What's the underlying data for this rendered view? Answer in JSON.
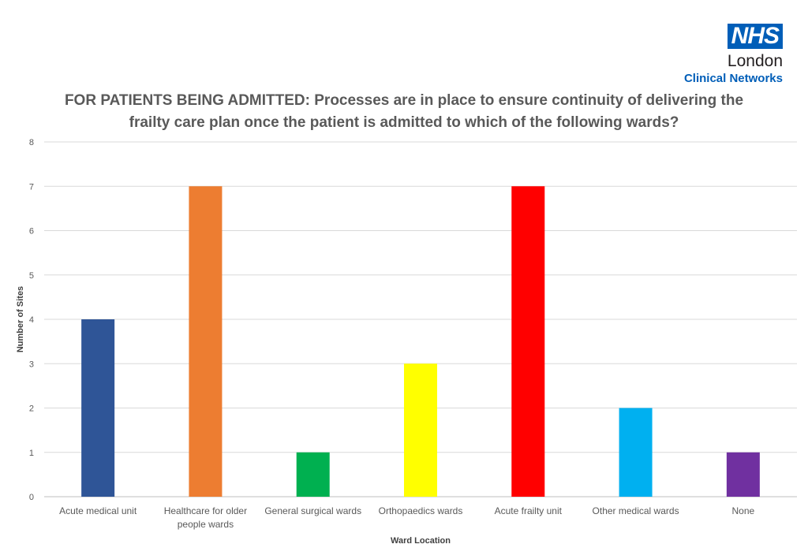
{
  "logo": {
    "mark": "NHS",
    "line1": "London",
    "line2": "Clinical Networks",
    "brand_color": "#005EB8"
  },
  "chart_data": {
    "type": "bar",
    "title": "FOR PATIENTS BEING ADMITTED: Processes are in place to ensure continuity of delivering the frailty care plan once the patient is admitted to which of the following wards?",
    "xlabel": "Ward Location",
    "ylabel": "Number of Sites",
    "ylim": [
      0,
      8
    ],
    "yticks": [
      0,
      1,
      2,
      3,
      4,
      5,
      6,
      7,
      8
    ],
    "grid": true,
    "categories": [
      "Acute medical unit",
      "Healthcare for older people wards",
      "General surgical wards",
      "Orthopaedics wards",
      "Acute frailty unit",
      "Other medical wards",
      "None"
    ],
    "values": [
      4,
      7,
      1,
      3,
      7,
      2,
      1
    ],
    "colors": [
      "#2F5597",
      "#ED7D31",
      "#00B050",
      "#FFFF00",
      "#FF0000",
      "#00B0F0",
      "#7030A0"
    ]
  }
}
